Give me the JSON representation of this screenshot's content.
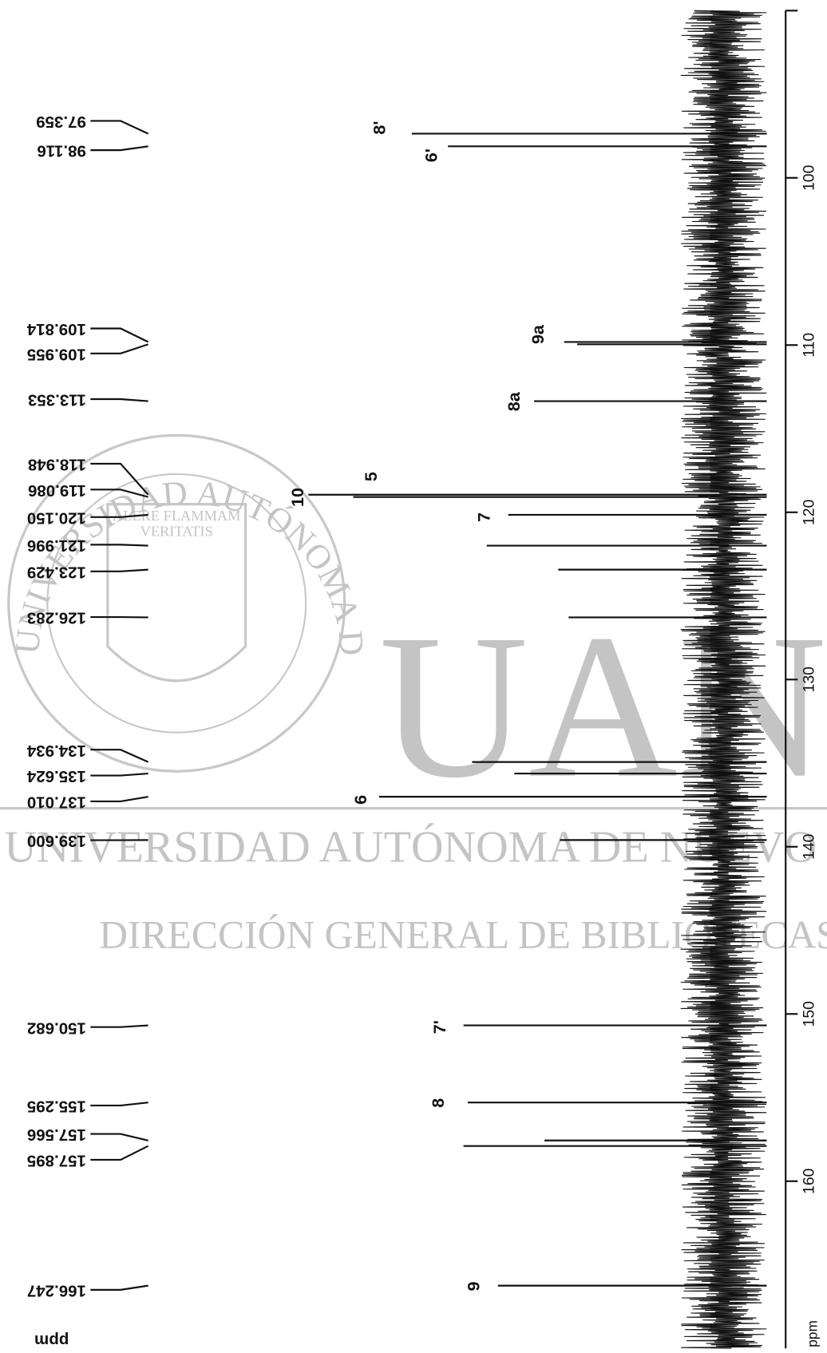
{
  "chart_data": {
    "type": "spectrum",
    "axis_label": "ppm",
    "peak_list_label": "ppm",
    "x": [
      97.359,
      98.116,
      109.814,
      109.955,
      113.353,
      118.948,
      119.086,
      120.15,
      121.996,
      123.429,
      126.283,
      134.934,
      135.624,
      137.01,
      139.6,
      150.682,
      155.295,
      157.566,
      157.895,
      166.247
    ],
    "x_labels": [
      "97.359",
      "98.116",
      "109.814",
      "109.955",
      "113.353",
      "118.948",
      "119.086",
      "120.150",
      "121.996",
      "123.429",
      "126.283",
      "134.934",
      "135.624",
      "137.010",
      "139.600",
      "150.682",
      "155.295",
      "157.566",
      "157.895",
      "166.247"
    ],
    "series": [
      {
        "color": "#111111",
        "values": [
          412,
          370,
          235,
          220,
          270,
          532,
          480,
          300,
          325,
          242,
          230,
          342,
          293,
          450,
          240,
          352,
          347,
          258,
          352,
          312
        ]
      }
    ],
    "xlim": [
      90,
      170
    ],
    "xticks": [
      100,
      110,
      120,
      130,
      140,
      150,
      160
    ],
    "ylim": [
      0,
      560
    ],
    "annotations": [
      "8'",
      "6'",
      "9a",
      "8a",
      "10",
      "5",
      "7",
      "6",
      "7'",
      "8",
      "9"
    ]
  },
  "watermark": {
    "ring": "UNIVERSIDAD AUTÓNOMA DE NUEVO LEÓN",
    "motto_1": "ALERE FLAMMAM",
    "motto_2": "VERITATIS",
    "initials": "UANL",
    "line_1": "UNIVERSIDAD AUTÓNOMA DE NUEVO LEÓN",
    "line_2": "DIRECCIÓN GENERAL DE BIBLIOTECAS"
  }
}
